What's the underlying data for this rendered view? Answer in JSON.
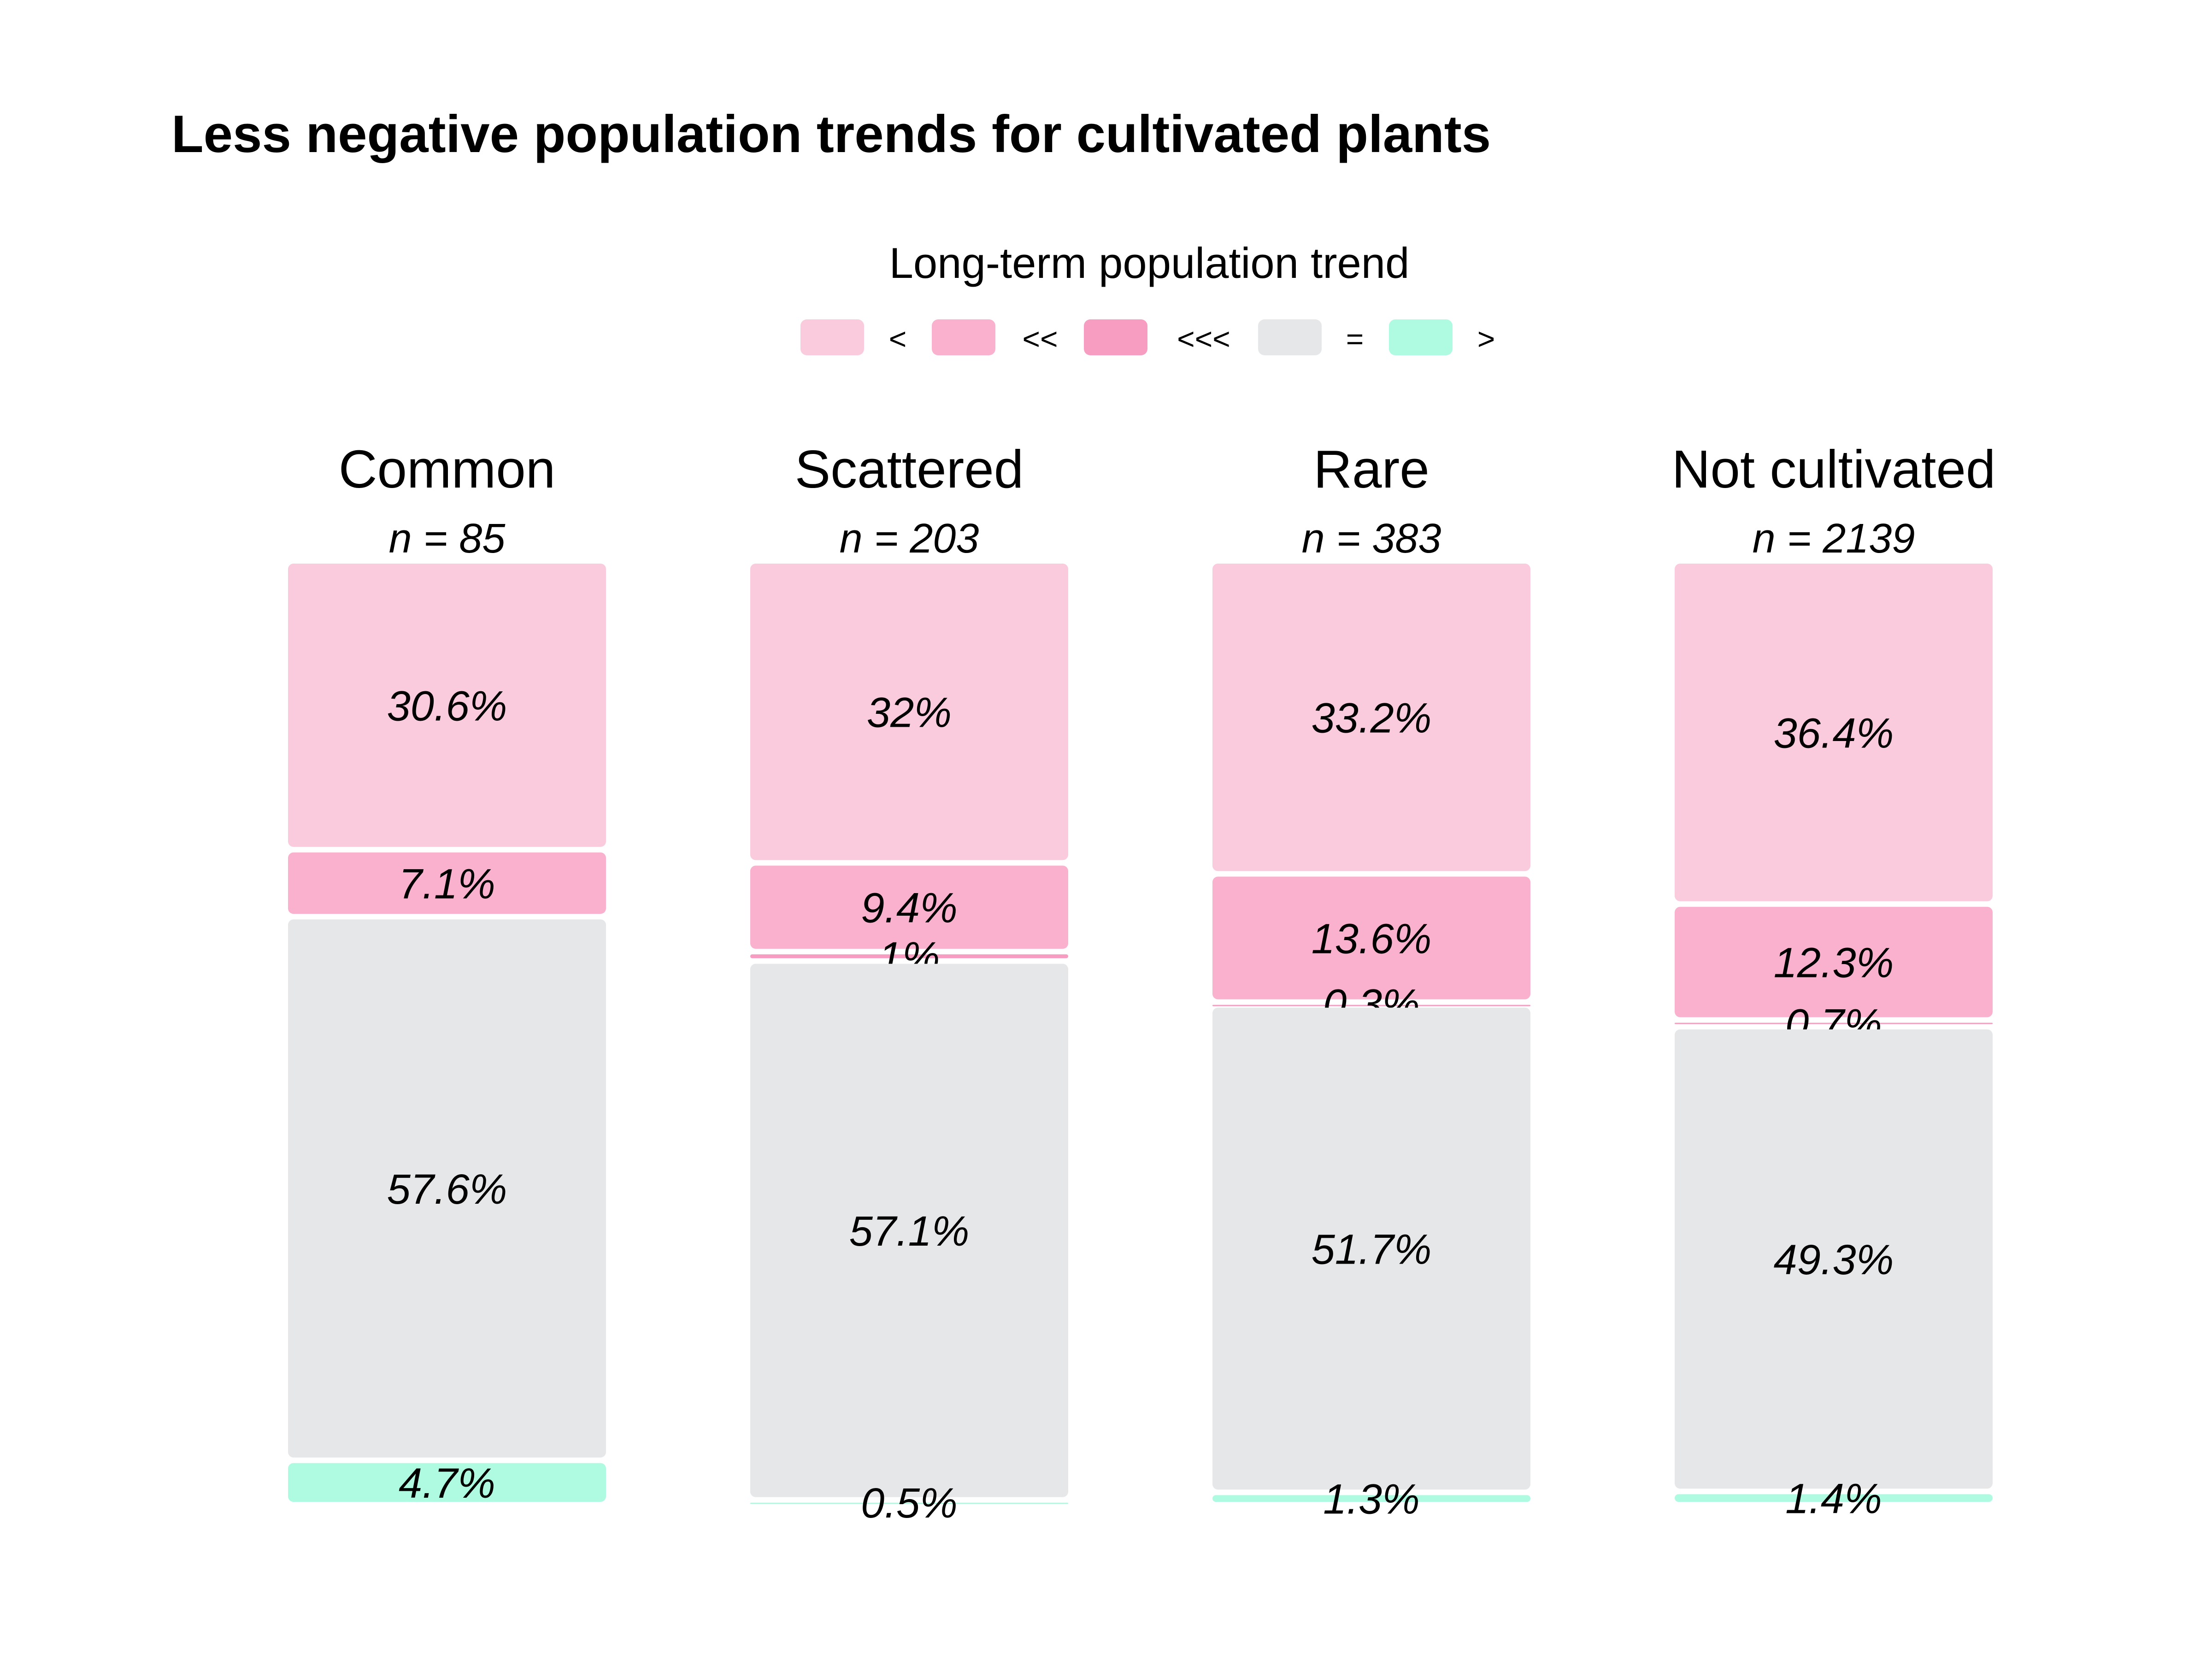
{
  "chart_data": {
    "type": "bar",
    "stacked": true,
    "normalized": true,
    "title": "Less negative population trends for cultivated plants",
    "legend": {
      "title": "Long-term population trend",
      "position": "top",
      "entries": [
        {
          "key": "<",
          "label": "<",
          "color": "#FACADD"
        },
        {
          "key": "<<",
          "label": "<<",
          "color": "#F9B1CE"
        },
        {
          "key": "<<<",
          "label": "<<<",
          "color": "#F79DC2"
        },
        {
          "key": "=",
          "label": "=",
          "color": "#E6E7E9"
        },
        {
          "key": ">",
          "label": ">",
          "color": "#AFFBE1"
        }
      ]
    },
    "facets": [
      {
        "name": "Common",
        "n_label": "n = 85",
        "segments": [
          {
            "key": "<",
            "value": 30.6,
            "label": "30.6%"
          },
          {
            "key": "<<",
            "value": 7.1,
            "label": "7.1%"
          },
          {
            "key": "=",
            "value": 57.6,
            "label": "57.6%"
          },
          {
            "key": ">",
            "value": 4.7,
            "label": "4.7%"
          }
        ]
      },
      {
        "name": "Scattered",
        "n_label": "n = 203",
        "segments": [
          {
            "key": "<",
            "value": 32.0,
            "label": "32%"
          },
          {
            "key": "<<",
            "value": 9.4,
            "label": "9.4%"
          },
          {
            "key": "<<<",
            "value": 1.0,
            "label": "1%"
          },
          {
            "key": "=",
            "value": 57.1,
            "label": "57.1%"
          },
          {
            "key": ">",
            "value": 0.5,
            "label": "0.5%"
          }
        ]
      },
      {
        "name": "Rare",
        "n_label": "n = 383",
        "segments": [
          {
            "key": "<",
            "value": 33.2,
            "label": "33.2%"
          },
          {
            "key": "<<",
            "value": 13.6,
            "label": "13.6%"
          },
          {
            "key": "<<<",
            "value": 0.3,
            "label": "0.3%"
          },
          {
            "key": "=",
            "value": 51.7,
            "label": "51.7%"
          },
          {
            "key": ">",
            "value": 1.3,
            "label": "1.3%"
          }
        ]
      },
      {
        "name": "Not cultivated",
        "n_label": "n = 2139",
        "segments": [
          {
            "key": "<",
            "value": 36.4,
            "label": "36.4%"
          },
          {
            "key": "<<",
            "value": 12.3,
            "label": "12.3%"
          },
          {
            "key": "<<<",
            "value": 0.7,
            "label": "0.7%"
          },
          {
            "key": "=",
            "value": 49.3,
            "label": "49.3%"
          },
          {
            "key": ">",
            "value": 1.4,
            "label": "1.4%"
          }
        ]
      }
    ]
  }
}
